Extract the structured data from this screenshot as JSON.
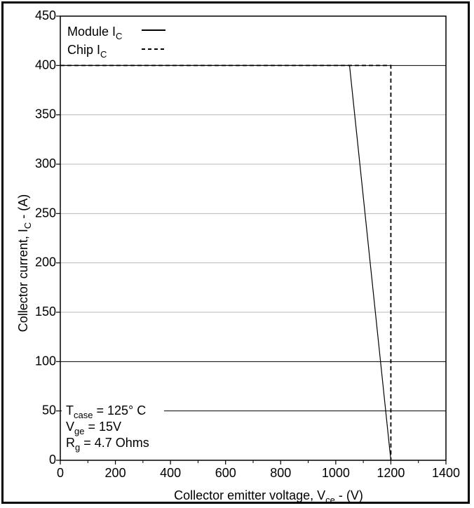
{
  "chart_data": {
    "type": "line",
    "xlabel": "Collector emitter voltage, V",
    "xlabel_sub": "ce",
    "xlabel_suffix": " - (V)",
    "ylabel": "Collector current, I",
    "ylabel_sub": "C",
    "ylabel_suffix": " - (A)",
    "xlim": [
      0,
      1400
    ],
    "ylim": [
      0,
      450
    ],
    "xticks": [
      0,
      200,
      400,
      600,
      800,
      1000,
      1200,
      1400
    ],
    "yticks": [
      0,
      50,
      100,
      150,
      200,
      250,
      300,
      350,
      400,
      450
    ],
    "gridlines_gray": [
      150,
      200,
      250,
      300,
      350
    ],
    "gridlines_black": [
      50,
      100,
      400
    ],
    "legend_position": "top-left",
    "series": [
      {
        "name": "Module I",
        "name_sub": "C",
        "style": "solid",
        "points": [
          [
            0,
            400
          ],
          [
            1050,
            400
          ],
          [
            1200,
            0
          ]
        ]
      },
      {
        "name": "Chip I",
        "name_sub": "C",
        "style": "dashed",
        "points": [
          [
            0,
            400
          ],
          [
            1200,
            400
          ],
          [
            1200,
            0
          ]
        ]
      }
    ],
    "annotations": [
      {
        "main": "T",
        "sub": "case",
        "rest": " = 125° C"
      },
      {
        "main": "V",
        "sub": "ge",
        "rest": " = 15V"
      },
      {
        "main": "R",
        "sub": "g",
        "rest": " = 4.7 Ohms"
      }
    ]
  }
}
